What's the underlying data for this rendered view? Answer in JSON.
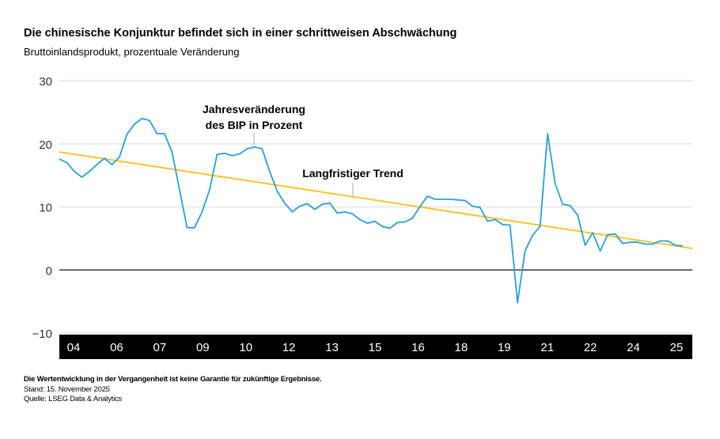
{
  "title": "Die chinesische Konjunktur befindet sich in einer schrittweisen Abschwächung",
  "subtitle": "Bruttoinlandsprodukt, prozentuale Veränderung",
  "footer": {
    "disclaimer": "Die Wertentwicklung in der Vergangenheit ist keine Garantie für zukünftige Ergebnisse.",
    "date": "Stand: 15. November 2025",
    "source": "Quelle: LSEG Data & Analytics"
  },
  "chart_data": {
    "type": "line",
    "ylim": [
      -10,
      30
    ],
    "yticks": [
      30,
      20,
      10,
      0,
      -10
    ],
    "ytick_labels": [
      "30",
      "20",
      "10",
      "0",
      "−10"
    ],
    "xtick_labels": [
      "04",
      "06",
      "07",
      "09",
      "10",
      "12",
      "13",
      "15",
      "16",
      "18",
      "19",
      "21",
      "22",
      "24",
      "25"
    ],
    "grid": true,
    "colors": {
      "gdp": "#2a9fd8",
      "trend": "#ffbf1f",
      "axis_band": "#000000"
    },
    "annotations": [
      {
        "lines": [
          "Jahresveränderung",
          "des BIP in Prozent"
        ],
        "target": "gdp"
      },
      {
        "lines": [
          "Langfristiger Trend"
        ],
        "target": "trend"
      }
    ],
    "series": [
      {
        "id": "gdp",
        "values": [
          17.6,
          17,
          15.6,
          14.7,
          15.6,
          16.7,
          17.7,
          16.7,
          17.9,
          21.5,
          23.1,
          24,
          23.7,
          21.6,
          21.6,
          18.7,
          12.7,
          6.7,
          6.7,
          9.2,
          12.7,
          18.3,
          18.5,
          18.1,
          18.4,
          19.2,
          19.5,
          19.2,
          15.6,
          12.5,
          10.6,
          9.2,
          10.1,
          10.5,
          9.6,
          10.4,
          10.6,
          9,
          9.2,
          8.9,
          8,
          7.4,
          7.7,
          6.9,
          6.6,
          7.5,
          7.6,
          8.2,
          10,
          11.7,
          11.2,
          11.2,
          11.2,
          11.1,
          11,
          10.1,
          9.9,
          7.7,
          8,
          7.2,
          7.1,
          -5.2,
          3,
          5.5,
          6.9,
          21.6,
          13.7,
          10.4,
          10.2,
          8.7,
          3.9,
          5.9,
          3,
          5.6,
          5.7,
          4.2,
          4.4,
          4.4,
          4.1,
          4.1,
          4.6,
          4.6,
          3.9,
          3.8
        ]
      },
      {
        "id": "trend",
        "values": [
          18.7,
          3.4
        ]
      }
    ]
  }
}
